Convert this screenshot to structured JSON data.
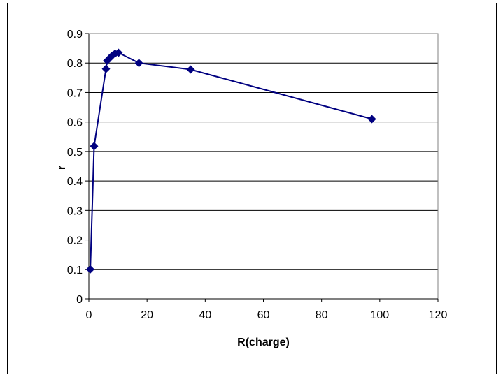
{
  "chart_data": {
    "type": "scatter",
    "title": "",
    "xlabel": "R(charge)",
    "ylabel": "r",
    "xlim": [
      0,
      120
    ],
    "ylim": [
      0,
      0.9
    ],
    "x_ticks": [
      "0",
      "20",
      "40",
      "60",
      "80",
      "100",
      "120"
    ],
    "y_ticks": [
      "0",
      "0.1",
      "0.2",
      "0.3",
      "0.4",
      "0.5",
      "0.6",
      "0.7",
      "0.8",
      "0.9"
    ],
    "grid": "horizontal",
    "legend": "none",
    "marker": "diamond",
    "line": true,
    "series": [
      {
        "color": "#000080",
        "points": [
          {
            "x": 0.5,
            "y": 0.1
          },
          {
            "x": 1.8,
            "y": 0.518
          },
          {
            "x": 5.9,
            "y": 0.78
          },
          {
            "x": 6.3,
            "y": 0.808
          },
          {
            "x": 7.2,
            "y": 0.817
          },
          {
            "x": 8.0,
            "y": 0.825
          },
          {
            "x": 9.0,
            "y": 0.832
          },
          {
            "x": 10.2,
            "y": 0.835
          },
          {
            "x": 17.2,
            "y": 0.8
          },
          {
            "x": 35.0,
            "y": 0.778
          },
          {
            "x": 97.3,
            "y": 0.61
          }
        ]
      }
    ]
  }
}
